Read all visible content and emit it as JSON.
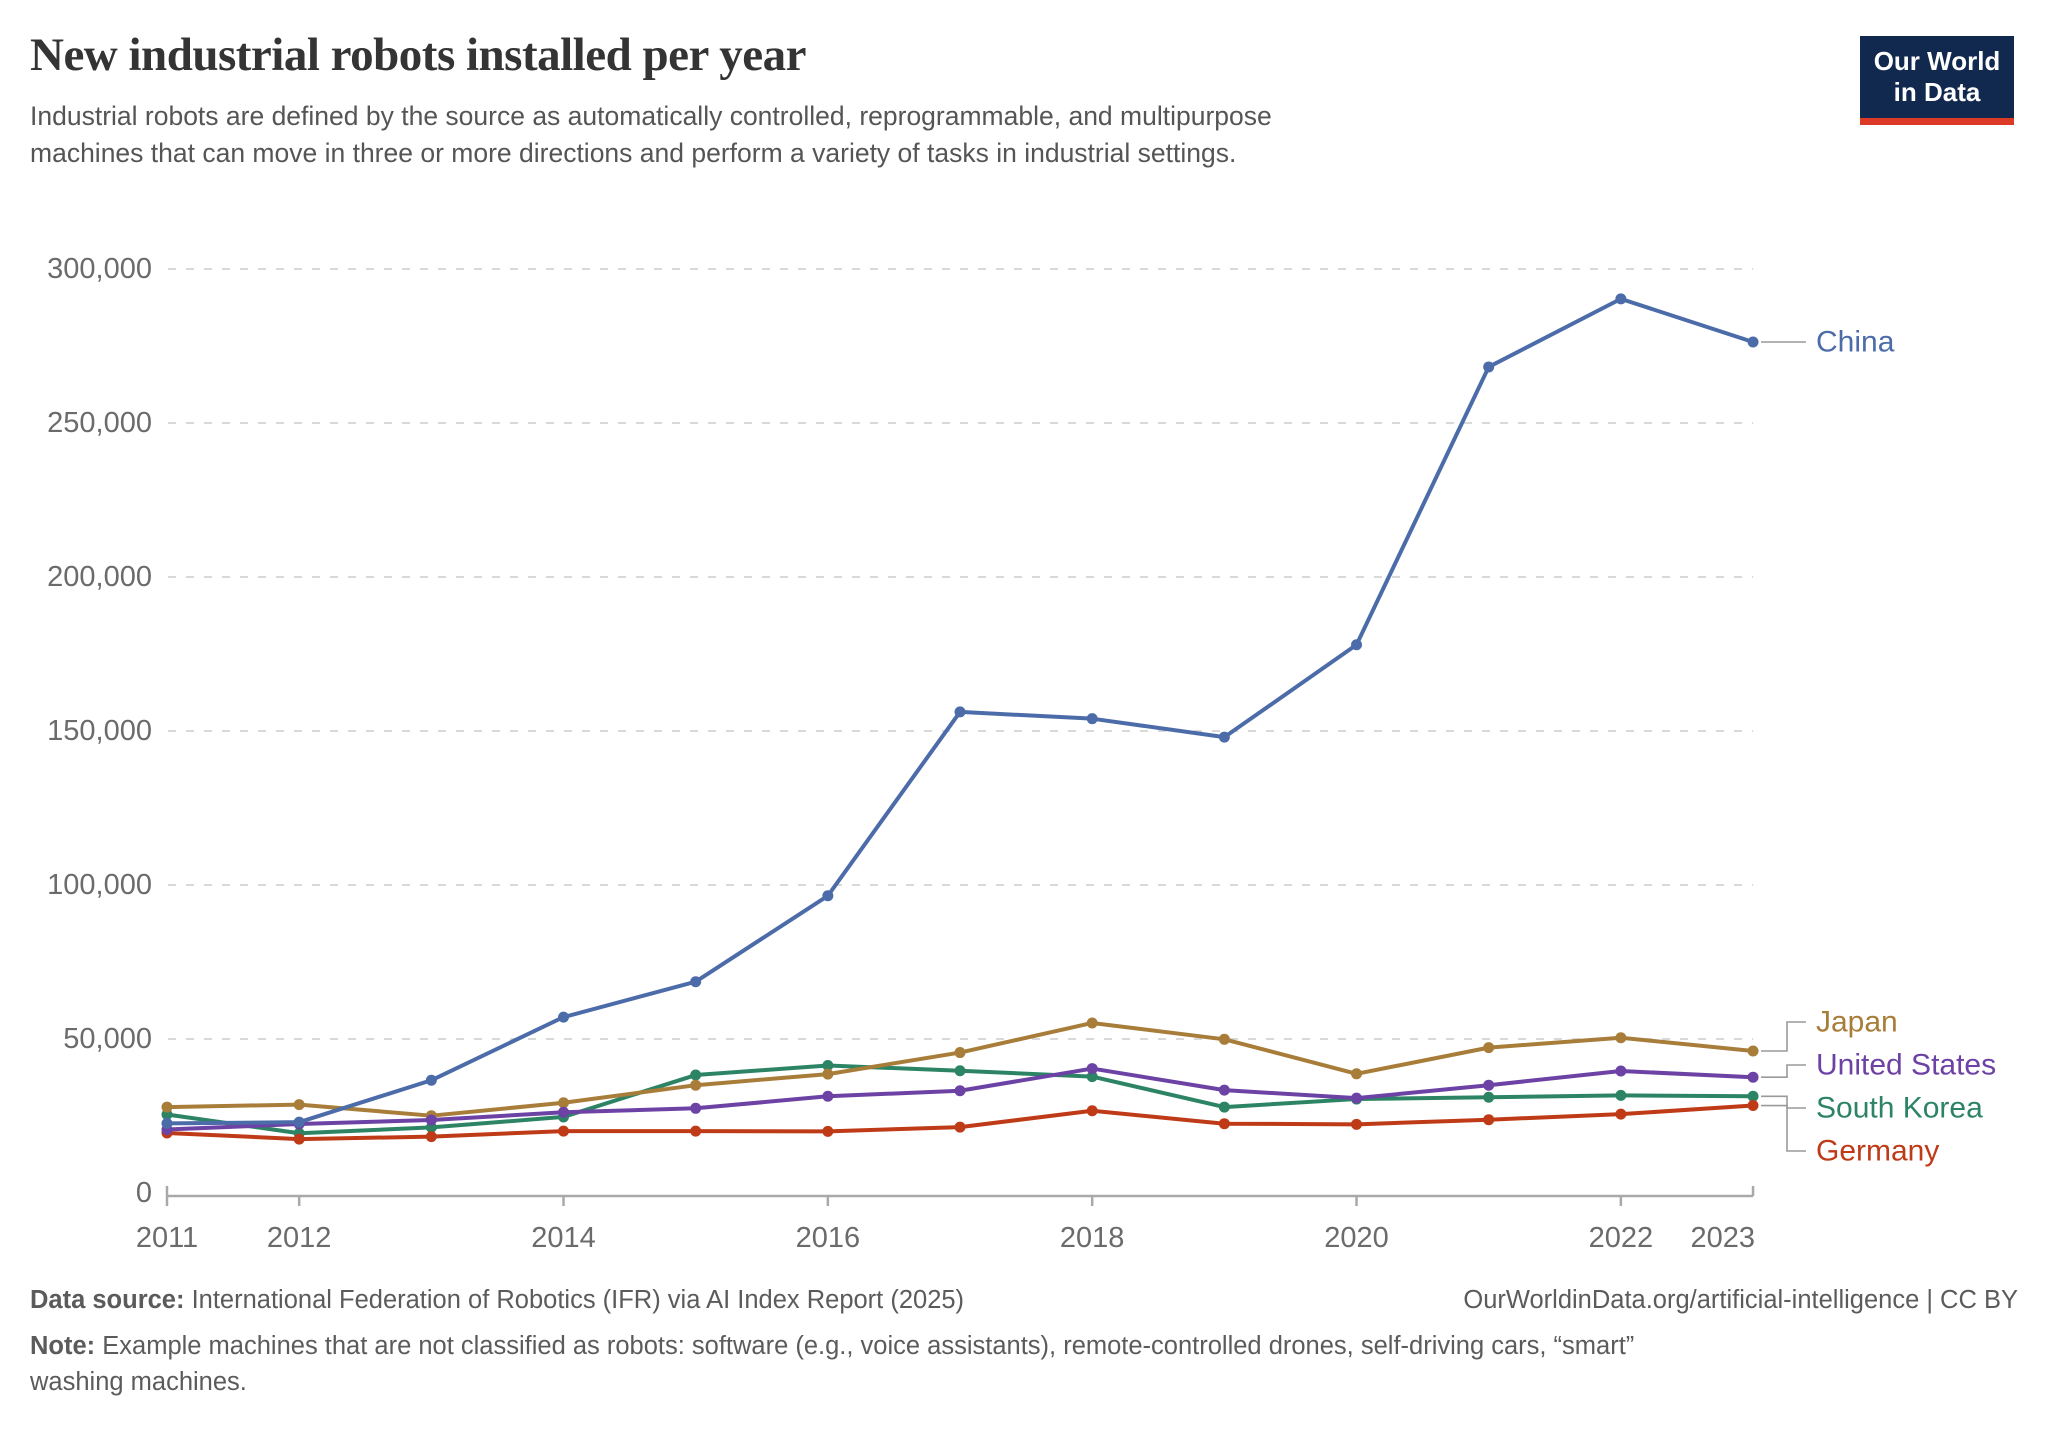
{
  "header": {
    "title": "New industrial robots installed per year",
    "subtitle_line1": "Industrial robots are defined by the source as automatically controlled, reprogrammable, and multipurpose",
    "subtitle_line2": "machines that can move in three or more directions and perform a variety of tasks in industrial settings.",
    "logo": {
      "line1": "Our World",
      "line2": "in Data"
    }
  },
  "chart_data": {
    "type": "line",
    "title": "New industrial robots installed per year",
    "x": [
      2011,
      2012,
      2013,
      2014,
      2015,
      2016,
      2017,
      2018,
      2019,
      2020,
      2021,
      2022,
      2023
    ],
    "x_ticks": [
      {
        "year": 2011,
        "label": "2011"
      },
      {
        "year": 2012,
        "label": "2012"
      },
      {
        "year": 2014,
        "label": "2014"
      },
      {
        "year": 2016,
        "label": "2016"
      },
      {
        "year": 2018,
        "label": "2018"
      },
      {
        "year": 2020,
        "label": "2020"
      },
      {
        "year": 2022,
        "label": "2022"
      },
      {
        "year": 2023,
        "label": "2023"
      }
    ],
    "ylim": [
      0,
      300000
    ],
    "y_ticks": [
      {
        "value": 0,
        "label": "0"
      },
      {
        "value": 50000,
        "label": "50,000"
      },
      {
        "value": 100000,
        "label": "100,000"
      },
      {
        "value": 150000,
        "label": "150,000"
      },
      {
        "value": 200000,
        "label": "200,000"
      },
      {
        "value": 250000,
        "label": "250,000"
      },
      {
        "value": 300000,
        "label": "300,000"
      }
    ],
    "grid": "horizontal-dashed",
    "legend_position": "right-of-line-ends",
    "series": [
      {
        "name": "China",
        "color": "#4c6ca9",
        "values": [
          22600,
          23000,
          36600,
          57100,
          68600,
          96500,
          156200,
          154000,
          148000,
          178000,
          268200,
          290300,
          276300
        ]
      },
      {
        "name": "Japan",
        "color": "#a87d39",
        "values": [
          27900,
          28700,
          25100,
          29300,
          35000,
          38600,
          45600,
          55200,
          49900,
          38700,
          47200,
          50400,
          46100
        ]
      },
      {
        "name": "United States",
        "color": "#6d42a5",
        "values": [
          20600,
          22400,
          23700,
          26200,
          27500,
          31400,
          33200,
          40400,
          33400,
          30800,
          35000,
          39600,
          37600
        ]
      },
      {
        "name": "South Korea",
        "color": "#2d8465",
        "values": [
          25500,
          19400,
          21300,
          24700,
          38300,
          41400,
          39700,
          37800,
          27900,
          30500,
          31100,
          31700,
          31400
        ]
      },
      {
        "name": "Germany",
        "color": "#bf3b17",
        "values": [
          19500,
          17500,
          18300,
          20100,
          20100,
          20000,
          21400,
          26700,
          22500,
          22300,
          23800,
          25600,
          28400
        ]
      }
    ]
  },
  "footer": {
    "data_source_label": "Data source:",
    "data_source_text": "International Federation of Robotics (IFR) via AI Index Report (2025)",
    "credit": "OurWorldinData.org/artificial-intelligence | CC BY",
    "note_label": "Note:",
    "note_text_line1": "Example machines that are not classified as robots: software (e.g., voice assistants), remote-controlled drones, self-driving cars, “smart”",
    "note_text_line2": "washing machines."
  }
}
